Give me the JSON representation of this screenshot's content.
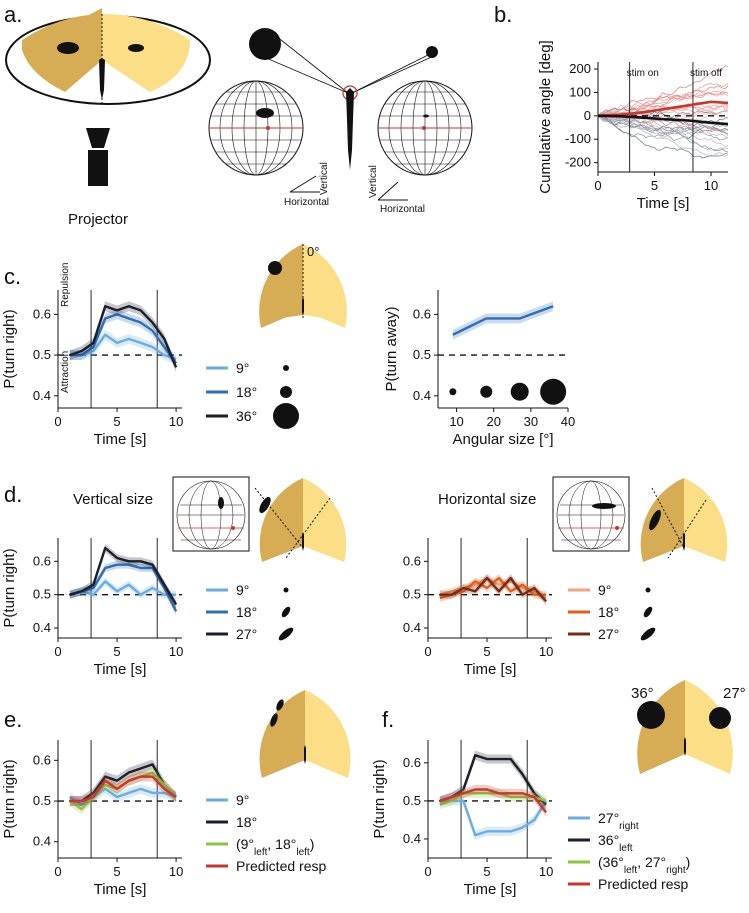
{
  "panel_labels": {
    "a": "a.",
    "b": "b.",
    "c": "c.",
    "d": "d.",
    "e": "e.",
    "f": "f."
  },
  "panel_a": {
    "projector": "Projector",
    "horizontal": "Horizontal",
    "vertical": "Vertical"
  },
  "panel_c": {
    "zero_deg": "0°",
    "repulsion": "Repulsion",
    "attraction": "Attraction",
    "legend": [
      "9°",
      "18°",
      "36°"
    ]
  },
  "panel_d": {
    "vertical_title": "Vertical size",
    "horizontal_title": "Horizontal size",
    "legend": [
      "9°",
      "18°",
      "27°"
    ]
  },
  "panel_e": {
    "legend": [
      "9°",
      "18°",
      "(9°left, 18°left)",
      "Predicted resp"
    ]
  },
  "panel_f": {
    "deg_left": "36°",
    "deg_right": "27°",
    "legend": [
      "27°right",
      "36°left",
      "(36°left, 27°right)",
      "Predicted resp"
    ]
  },
  "colors": {
    "light_blue": "#6aaee0",
    "mid_blue": "#2f6db5",
    "dark_navy": "#1a1f2b",
    "light_orange": "#f2a27e",
    "orange": "#e0601a",
    "brown": "#7a2a12",
    "lime": "#8cc63f",
    "red": "#c8372d",
    "arena_dark": "#d6ac55",
    "arena_light": "#fbde86"
  },
  "chart_data": [
    {
      "panel": "b",
      "type": "line",
      "xlabel": "Time [s]",
      "ylabel": "Cumulative angle [deg]",
      "xlim": [
        0,
        11.5
      ],
      "ylim": [
        -240,
        230
      ],
      "xticks": [
        0,
        5,
        10
      ],
      "yticks": [
        -200,
        -100,
        0,
        100,
        200
      ],
      "annotations": [
        {
          "text": "stim on",
          "x": 2.8
        },
        {
          "text": "stim off",
          "x": 8.4
        }
      ],
      "series": [
        {
          "color": "red",
          "x": [
            0,
            2,
            4,
            6,
            8,
            10,
            11.5
          ],
          "values": [
            0,
            5,
            15,
            30,
            45,
            60,
            55
          ]
        },
        {
          "color": "black",
          "x": [
            0,
            2,
            4,
            6,
            8,
            10,
            11.5
          ],
          "values": [
            0,
            -2,
            -8,
            -15,
            -20,
            -30,
            -35
          ]
        }
      ]
    },
    {
      "panel": "c-left",
      "type": "line",
      "xlabel": "Time [s]",
      "ylabel": "P(turn right)",
      "xlim": [
        0,
        10.5
      ],
      "ylim": [
        0.37,
        0.66
      ],
      "xticks": [
        0,
        5,
        10
      ],
      "yticks": [
        0.4,
        0.5,
        0.6
      ],
      "x": [
        1,
        2,
        3,
        4,
        5,
        6,
        7,
        8,
        9,
        10
      ],
      "series": [
        {
          "name": "9°",
          "color": "light_blue",
          "values": [
            0.5,
            0.5,
            0.51,
            0.55,
            0.53,
            0.54,
            0.53,
            0.52,
            0.5,
            0.49
          ]
        },
        {
          "name": "18°",
          "color": "mid_blue",
          "values": [
            0.5,
            0.5,
            0.52,
            0.59,
            0.6,
            0.59,
            0.58,
            0.56,
            0.52,
            0.48
          ]
        },
        {
          "name": "36°",
          "color": "dark_navy",
          "values": [
            0.5,
            0.51,
            0.53,
            0.62,
            0.61,
            0.62,
            0.61,
            0.58,
            0.54,
            0.47
          ]
        }
      ]
    },
    {
      "panel": "c-right",
      "type": "line",
      "xlabel": "Angular size [°]",
      "ylabel": "P(turn away)",
      "xlim": [
        5,
        40
      ],
      "ylim": [
        0.37,
        0.66
      ],
      "xticks": [
        10,
        20,
        30,
        40
      ],
      "yticks": [
        0.4,
        0.5,
        0.6
      ],
      "x": [
        9,
        18,
        27,
        36
      ],
      "values": [
        0.55,
        0.59,
        0.59,
        0.62
      ]
    },
    {
      "panel": "d-left",
      "type": "line",
      "xlabel": "Time [s]",
      "ylabel": "P(turn right)",
      "xlim": [
        0,
        10.5
      ],
      "ylim": [
        0.37,
        0.67
      ],
      "xticks": [
        0,
        5,
        10
      ],
      "yticks": [
        0.4,
        0.5,
        0.6
      ],
      "x": [
        1,
        2,
        3,
        4,
        5,
        6,
        7,
        8,
        9,
        10
      ],
      "series": [
        {
          "name": "9°",
          "color": "light_blue",
          "values": [
            0.5,
            0.51,
            0.5,
            0.54,
            0.51,
            0.53,
            0.5,
            0.52,
            0.5,
            0.5
          ]
        },
        {
          "name": "18°",
          "color": "mid_blue",
          "values": [
            0.5,
            0.51,
            0.52,
            0.58,
            0.59,
            0.59,
            0.58,
            0.58,
            0.52,
            0.45
          ]
        },
        {
          "name": "27°",
          "color": "dark_navy",
          "values": [
            0.5,
            0.51,
            0.53,
            0.64,
            0.61,
            0.6,
            0.6,
            0.59,
            0.53,
            0.47
          ]
        }
      ]
    },
    {
      "panel": "d-right",
      "type": "line",
      "xlabel": "Time [s]",
      "ylabel": "",
      "xlim": [
        0,
        10.5
      ],
      "ylim": [
        0.37,
        0.67
      ],
      "xticks": [
        0,
        5,
        10
      ],
      "yticks": [
        0.4,
        0.5,
        0.6
      ],
      "x": [
        1,
        2,
        3,
        4,
        5,
        6,
        7,
        8,
        9,
        10
      ],
      "series": [
        {
          "name": "9°",
          "color": "light_orange",
          "values": [
            0.5,
            0.51,
            0.52,
            0.53,
            0.55,
            0.53,
            0.54,
            0.52,
            0.51,
            0.49
          ]
        },
        {
          "name": "18°",
          "color": "orange",
          "values": [
            0.49,
            0.5,
            0.51,
            0.54,
            0.52,
            0.55,
            0.51,
            0.53,
            0.5,
            0.5
          ]
        },
        {
          "name": "27°",
          "color": "brown",
          "values": [
            0.5,
            0.5,
            0.52,
            0.51,
            0.55,
            0.51,
            0.55,
            0.5,
            0.52,
            0.48
          ]
        }
      ]
    },
    {
      "panel": "e",
      "type": "line",
      "xlabel": "Time [s]",
      "ylabel": "P(turn right)",
      "xlim": [
        0,
        10.5
      ],
      "ylim": [
        0.36,
        0.65
      ],
      "xticks": [
        0,
        5,
        10
      ],
      "yticks": [
        0.4,
        0.5,
        0.6
      ],
      "x": [
        1,
        2,
        3,
        4,
        5,
        6,
        7,
        8,
        9,
        10
      ],
      "series": [
        {
          "name": "9°",
          "color": "light_blue",
          "values": [
            0.51,
            0.49,
            0.51,
            0.53,
            0.51,
            0.52,
            0.53,
            0.52,
            0.52,
            0.51
          ]
        },
        {
          "name": "18°",
          "color": "dark_navy",
          "values": [
            0.5,
            0.5,
            0.52,
            0.56,
            0.55,
            0.57,
            0.58,
            0.59,
            0.54,
            0.51
          ]
        },
        {
          "name": "(9°left, 18°left)",
          "color": "lime",
          "values": [
            0.5,
            0.48,
            0.51,
            0.54,
            0.53,
            0.55,
            0.56,
            0.57,
            0.54,
            0.51
          ]
        },
        {
          "name": "Predicted resp",
          "color": "red",
          "values": [
            0.5,
            0.5,
            0.51,
            0.55,
            0.53,
            0.55,
            0.56,
            0.56,
            0.53,
            0.51
          ]
        }
      ]
    },
    {
      "panel": "f",
      "type": "line",
      "xlabel": "Time [s]",
      "ylabel": "P(turn right)",
      "xlim": [
        0,
        10.5
      ],
      "ylim": [
        0.35,
        0.66
      ],
      "xticks": [
        0,
        5,
        10
      ],
      "yticks": [
        0.4,
        0.5,
        0.6
      ],
      "x": [
        1,
        2,
        3,
        4,
        5,
        6,
        7,
        8,
        9,
        10
      ],
      "series": [
        {
          "name": "27°right",
          "color": "light_blue",
          "values": [
            0.5,
            0.5,
            0.5,
            0.41,
            0.42,
            0.42,
            0.42,
            0.43,
            0.45,
            0.5
          ]
        },
        {
          "name": "36°left",
          "color": "dark_navy",
          "values": [
            0.5,
            0.51,
            0.53,
            0.62,
            0.61,
            0.61,
            0.61,
            0.57,
            0.52,
            0.49
          ]
        },
        {
          "name": "(36°left, 27°right)",
          "color": "lime",
          "values": [
            0.49,
            0.5,
            0.52,
            0.52,
            0.52,
            0.52,
            0.51,
            0.51,
            0.51,
            0.5
          ]
        },
        {
          "name": "Predicted resp",
          "color": "red",
          "values": [
            0.5,
            0.51,
            0.52,
            0.53,
            0.53,
            0.52,
            0.52,
            0.52,
            0.51,
            0.47
          ]
        }
      ]
    }
  ]
}
